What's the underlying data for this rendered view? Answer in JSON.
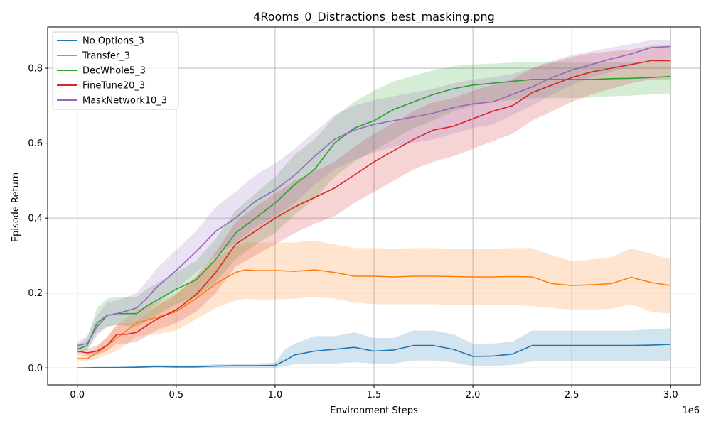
{
  "chart_data": {
    "type": "line",
    "title": "4Rooms_0_Distractions_best_masking.png",
    "xlabel": "Environment Steps",
    "ylabel": "Episode Return",
    "x_offset_text": "1e6",
    "xlim": [
      -0.15,
      3.15
    ],
    "ylim": [
      -0.045,
      0.91
    ],
    "xticks": [
      0.0,
      0.5,
      1.0,
      1.5,
      2.0,
      2.5,
      3.0
    ],
    "xtick_labels": [
      "0.0",
      "0.5",
      "1.0",
      "1.5",
      "2.0",
      "2.5",
      "3.0"
    ],
    "yticks": [
      0.0,
      0.2,
      0.4,
      0.6,
      0.8
    ],
    "ytick_labels": [
      "0.0",
      "0.2",
      "0.4",
      "0.6",
      "0.8"
    ],
    "grid": true,
    "legend_position": "upper-left",
    "series": [
      {
        "name": "No Options_3",
        "color": "#1f77b4",
        "x": [
          0,
          0.1,
          0.2,
          0.3,
          0.4,
          0.5,
          0.6,
          0.7,
          0.8,
          0.9,
          1.0,
          1.05,
          1.1,
          1.2,
          1.3,
          1.4,
          1.5,
          1.6,
          1.7,
          1.8,
          1.9,
          2.0,
          2.1,
          2.2,
          2.3,
          2.4,
          2.5,
          2.6,
          2.7,
          2.8,
          2.9,
          3.0
        ],
        "y": [
          0.0,
          0.001,
          0.001,
          0.002,
          0.004,
          0.003,
          0.003,
          0.005,
          0.006,
          0.006,
          0.007,
          0.02,
          0.035,
          0.045,
          0.05,
          0.055,
          0.045,
          0.048,
          0.06,
          0.06,
          0.05,
          0.031,
          0.032,
          0.037,
          0.06,
          0.06,
          0.06,
          0.06,
          0.06,
          0.06,
          0.061,
          0.063
        ],
        "lower": [
          0.0,
          0.0,
          0.0,
          0.0,
          0.0,
          0.0,
          0.0,
          0.0,
          0.0,
          0.0,
          0.0,
          0.005,
          0.01,
          0.012,
          0.012,
          0.015,
          0.012,
          0.012,
          0.02,
          0.02,
          0.015,
          0.005,
          0.005,
          0.008,
          0.018,
          0.018,
          0.018,
          0.018,
          0.018,
          0.018,
          0.018,
          0.02
        ],
        "upper": [
          0.002,
          0.003,
          0.003,
          0.005,
          0.008,
          0.007,
          0.007,
          0.01,
          0.012,
          0.012,
          0.014,
          0.05,
          0.065,
          0.085,
          0.085,
          0.095,
          0.08,
          0.08,
          0.1,
          0.1,
          0.09,
          0.065,
          0.065,
          0.07,
          0.1,
          0.1,
          0.1,
          0.1,
          0.1,
          0.1,
          0.103,
          0.106
        ]
      },
      {
        "name": "Transfer_3",
        "color": "#ff7f0e",
        "x": [
          0,
          0.05,
          0.1,
          0.2,
          0.3,
          0.4,
          0.5,
          0.6,
          0.7,
          0.8,
          0.85,
          0.9,
          1.0,
          1.1,
          1.2,
          1.3,
          1.4,
          1.5,
          1.6,
          1.7,
          1.8,
          1.9,
          2.0,
          2.1,
          2.2,
          2.3,
          2.4,
          2.5,
          2.6,
          2.7,
          2.8,
          2.9,
          3.0
        ],
        "y": [
          0.025,
          0.025,
          0.04,
          0.08,
          0.12,
          0.135,
          0.15,
          0.185,
          0.225,
          0.255,
          0.262,
          0.26,
          0.26,
          0.258,
          0.262,
          0.255,
          0.245,
          0.245,
          0.243,
          0.245,
          0.245,
          0.244,
          0.243,
          0.243,
          0.244,
          0.243,
          0.225,
          0.22,
          0.222,
          0.225,
          0.242,
          0.228,
          0.22
        ],
        "lower": [
          0.02,
          0.02,
          0.025,
          0.045,
          0.085,
          0.09,
          0.1,
          0.13,
          0.16,
          0.18,
          0.185,
          0.183,
          0.183,
          0.185,
          0.19,
          0.185,
          0.175,
          0.17,
          0.17,
          0.17,
          0.17,
          0.168,
          0.168,
          0.168,
          0.168,
          0.165,
          0.16,
          0.155,
          0.155,
          0.158,
          0.17,
          0.15,
          0.145
        ],
        "upper": [
          0.03,
          0.035,
          0.055,
          0.115,
          0.155,
          0.175,
          0.2,
          0.24,
          0.29,
          0.325,
          0.335,
          0.335,
          0.335,
          0.335,
          0.34,
          0.33,
          0.32,
          0.32,
          0.318,
          0.32,
          0.32,
          0.318,
          0.318,
          0.318,
          0.32,
          0.32,
          0.3,
          0.285,
          0.29,
          0.295,
          0.32,
          0.305,
          0.29
        ]
      },
      {
        "name": "DecWhole5_3",
        "color": "#2ca02c",
        "x": [
          0,
          0.05,
          0.1,
          0.15,
          0.2,
          0.3,
          0.35,
          0.4,
          0.5,
          0.6,
          0.7,
          0.8,
          0.9,
          1.0,
          1.1,
          1.2,
          1.3,
          1.4,
          1.5,
          1.6,
          1.7,
          1.8,
          1.9,
          2.0,
          2.1,
          2.2,
          2.3,
          2.4,
          2.5,
          2.6,
          2.7,
          2.8,
          2.9,
          3.0
        ],
        "y": [
          0.05,
          0.06,
          0.12,
          0.14,
          0.145,
          0.145,
          0.165,
          0.18,
          0.21,
          0.235,
          0.29,
          0.36,
          0.4,
          0.44,
          0.49,
          0.53,
          0.6,
          0.64,
          0.66,
          0.69,
          0.71,
          0.73,
          0.745,
          0.755,
          0.76,
          0.765,
          0.77,
          0.77,
          0.77,
          0.77,
          0.772,
          0.773,
          0.775,
          0.778
        ],
        "lower": [
          0.04,
          0.045,
          0.095,
          0.11,
          0.115,
          0.11,
          0.125,
          0.14,
          0.17,
          0.19,
          0.23,
          0.29,
          0.33,
          0.36,
          0.41,
          0.45,
          0.51,
          0.55,
          0.58,
          0.61,
          0.64,
          0.66,
          0.685,
          0.7,
          0.71,
          0.715,
          0.72,
          0.72,
          0.72,
          0.722,
          0.725,
          0.727,
          0.73,
          0.733
        ],
        "upper": [
          0.06,
          0.08,
          0.16,
          0.185,
          0.19,
          0.19,
          0.21,
          0.225,
          0.255,
          0.285,
          0.345,
          0.42,
          0.465,
          0.51,
          0.57,
          0.61,
          0.67,
          0.71,
          0.74,
          0.765,
          0.78,
          0.795,
          0.805,
          0.81,
          0.812,
          0.815,
          0.817,
          0.815,
          0.815,
          0.815,
          0.815,
          0.815,
          0.817,
          0.82
        ]
      },
      {
        "name": "FineTune20_3",
        "color": "#d62728",
        "x": [
          0,
          0.05,
          0.1,
          0.15,
          0.2,
          0.25,
          0.3,
          0.4,
          0.5,
          0.6,
          0.7,
          0.8,
          0.9,
          1.0,
          1.1,
          1.2,
          1.3,
          1.4,
          1.5,
          1.6,
          1.7,
          1.8,
          1.9,
          2.0,
          2.1,
          2.2,
          2.3,
          2.4,
          2.5,
          2.6,
          2.7,
          2.8,
          2.9,
          3.0
        ],
        "y": [
          0.045,
          0.04,
          0.045,
          0.06,
          0.09,
          0.09,
          0.095,
          0.13,
          0.155,
          0.195,
          0.255,
          0.33,
          0.365,
          0.4,
          0.43,
          0.455,
          0.48,
          0.515,
          0.55,
          0.58,
          0.61,
          0.635,
          0.645,
          0.665,
          0.685,
          0.7,
          0.735,
          0.755,
          0.775,
          0.79,
          0.8,
          0.81,
          0.82,
          0.82
        ],
        "lower": [
          0.035,
          0.03,
          0.035,
          0.045,
          0.065,
          0.065,
          0.07,
          0.1,
          0.12,
          0.15,
          0.2,
          0.27,
          0.3,
          0.33,
          0.36,
          0.385,
          0.405,
          0.44,
          0.47,
          0.5,
          0.53,
          0.55,
          0.565,
          0.585,
          0.605,
          0.625,
          0.66,
          0.685,
          0.71,
          0.73,
          0.745,
          0.76,
          0.77,
          0.77
        ],
        "upper": [
          0.055,
          0.05,
          0.06,
          0.08,
          0.115,
          0.12,
          0.125,
          0.165,
          0.195,
          0.245,
          0.31,
          0.39,
          0.43,
          0.465,
          0.5,
          0.525,
          0.55,
          0.59,
          0.625,
          0.655,
          0.685,
          0.71,
          0.72,
          0.74,
          0.755,
          0.77,
          0.8,
          0.815,
          0.83,
          0.84,
          0.845,
          0.85,
          0.86,
          0.86
        ]
      },
      {
        "name": "MaskNetwork10_3",
        "color": "#9467bd",
        "x": [
          0,
          0.05,
          0.1,
          0.15,
          0.2,
          0.3,
          0.35,
          0.4,
          0.5,
          0.6,
          0.7,
          0.8,
          0.9,
          1.0,
          1.1,
          1.2,
          1.3,
          1.4,
          1.5,
          1.6,
          1.7,
          1.8,
          1.9,
          2.0,
          2.1,
          2.2,
          2.3,
          2.4,
          2.5,
          2.6,
          2.7,
          2.8,
          2.9,
          3.0
        ],
        "y": [
          0.06,
          0.065,
          0.11,
          0.14,
          0.145,
          0.16,
          0.185,
          0.215,
          0.26,
          0.31,
          0.365,
          0.4,
          0.445,
          0.475,
          0.515,
          0.565,
          0.61,
          0.635,
          0.65,
          0.66,
          0.67,
          0.68,
          0.695,
          0.705,
          0.71,
          0.73,
          0.75,
          0.775,
          0.795,
          0.81,
          0.825,
          0.838,
          0.855,
          0.858
        ],
        "lower": [
          0.05,
          0.05,
          0.085,
          0.11,
          0.115,
          0.125,
          0.145,
          0.17,
          0.21,
          0.255,
          0.3,
          0.335,
          0.375,
          0.405,
          0.44,
          0.49,
          0.53,
          0.555,
          0.575,
          0.59,
          0.6,
          0.61,
          0.625,
          0.64,
          0.65,
          0.675,
          0.7,
          0.73,
          0.755,
          0.775,
          0.79,
          0.805,
          0.82,
          0.825
        ],
        "upper": [
          0.07,
          0.085,
          0.14,
          0.175,
          0.18,
          0.2,
          0.23,
          0.265,
          0.315,
          0.365,
          0.43,
          0.47,
          0.515,
          0.545,
          0.585,
          0.63,
          0.675,
          0.7,
          0.715,
          0.725,
          0.735,
          0.745,
          0.76,
          0.77,
          0.775,
          0.785,
          0.8,
          0.82,
          0.835,
          0.845,
          0.855,
          0.865,
          0.875,
          0.875
        ]
      }
    ]
  }
}
